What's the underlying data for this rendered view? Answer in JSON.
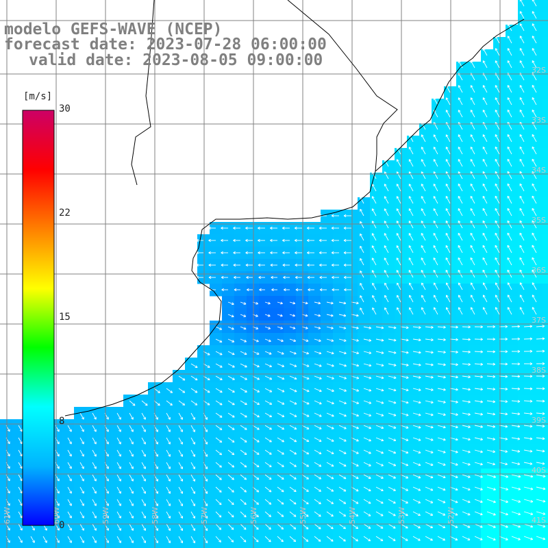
{
  "title": {
    "line1": "modelo GEFS-WAVE (NCEP)",
    "line2": "forecast date: 2023-07-28 06:00:00",
    "line3": "valid date: 2023-08-05 09:00:00"
  },
  "colorbar": {
    "unit": "[m/s]",
    "ticks": [
      "30",
      "22",
      "15",
      "8",
      "0"
    ],
    "stops": [
      "#0000ff",
      "#00b4ff",
      "#00ffff",
      "#00ff00",
      "#ffff00",
      "#ff8000",
      "#ff0000",
      "#cc0066"
    ]
  },
  "lat_labels": [
    "32S",
    "33S",
    "34S",
    "35S",
    "36S",
    "37S",
    "38S",
    "39S",
    "40S",
    "41S"
  ],
  "lon_labels": [
    "61W",
    "60W",
    "59W",
    "58W",
    "57W",
    "56W",
    "55W",
    "54W",
    "53W",
    "52W"
  ],
  "colors": {
    "land": "#ffffff",
    "coast": "#000000",
    "grid": "#808080",
    "arrow": "#ffffff",
    "title": "#808080"
  }
}
